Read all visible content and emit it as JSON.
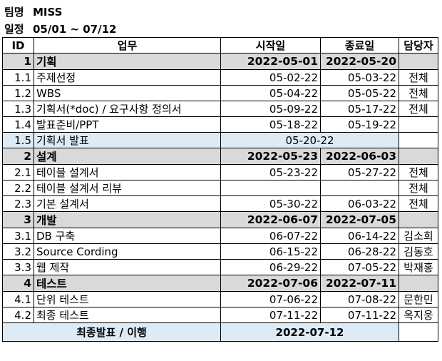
{
  "meta": {
    "team_label": "팀명",
    "team_value": "MISS",
    "schedule_label": "일정",
    "schedule_value": "05/01 ~ 07/12"
  },
  "headers": {
    "id": "ID",
    "task": "업무",
    "start": "시작일",
    "end": "종료일",
    "owner": "담당자"
  },
  "rows": [
    {
      "type": "phase",
      "id": "1",
      "task": "기획",
      "start": "2022-05-01",
      "end": "2022-05-20",
      "owner": ""
    },
    {
      "type": "task",
      "id": "1.1",
      "task": "주제선정",
      "start": "05-02-22",
      "end": "05-03-22",
      "owner": "전체"
    },
    {
      "type": "task",
      "id": "1.2",
      "task": "WBS",
      "start": "05-04-22",
      "end": "05-05-22",
      "owner": "전체"
    },
    {
      "type": "task",
      "id": "1.3",
      "task": "기획서(*doc) / 요구사항 정의서",
      "start": "05-09-22",
      "end": "05-17-22",
      "owner": "전체"
    },
    {
      "type": "task",
      "id": "1.4",
      "task": "발표준비/PPT",
      "start": "05-18-22",
      "end": "05-19-22",
      "owner": ""
    },
    {
      "type": "milestone",
      "id": "1.5",
      "task": "기획서 발표",
      "date": "05-20-22",
      "owner": ""
    },
    {
      "type": "phase",
      "id": "2",
      "task": "설계",
      "start": "2022-05-23",
      "end": "2022-06-03",
      "owner": ""
    },
    {
      "type": "task",
      "id": "2.1",
      "task": "테이블 설계서",
      "start": "05-23-22",
      "end": "05-27-22",
      "owner": "전체"
    },
    {
      "type": "task",
      "id": "2.2",
      "task": "테이블 설계서 리뷰",
      "start": "",
      "end": "",
      "owner": "전체"
    },
    {
      "type": "task",
      "id": "2.3",
      "task": "기본 설계서",
      "start": "05-30-22",
      "end": "06-03-22",
      "owner": "전체"
    },
    {
      "type": "phase",
      "id": "3",
      "task": "개발",
      "start": "2022-06-07",
      "end": "2022-07-05",
      "owner": ""
    },
    {
      "type": "task",
      "id": "3.1",
      "task": "DB 구축",
      "start": "06-07-22",
      "end": "06-14-22",
      "owner": "김소희"
    },
    {
      "type": "task",
      "id": "3.2",
      "task": "Source Cording",
      "start": "06-15-22",
      "end": "06-28-22",
      "owner": "김동호"
    },
    {
      "type": "task",
      "id": "3.3",
      "task": "웹 제작",
      "start": "06-29-22",
      "end": "07-05-22",
      "owner": "박재홍"
    },
    {
      "type": "phase",
      "id": "4",
      "task": "테스트",
      "start": "2022-07-06",
      "end": "2022-07-11",
      "owner": ""
    },
    {
      "type": "task",
      "id": "4.1",
      "task": "단위 테스트",
      "start": "07-06-22",
      "end": "07-08-22",
      "owner": "문한민"
    },
    {
      "type": "task",
      "id": "4.2",
      "task": "최종 테스트",
      "start": "07-11-22",
      "end": "07-11-22",
      "owner": "옥지웅"
    }
  ],
  "footer": {
    "label": "최종발표 / 이행",
    "date": "2022-07-12",
    "owner": ""
  }
}
